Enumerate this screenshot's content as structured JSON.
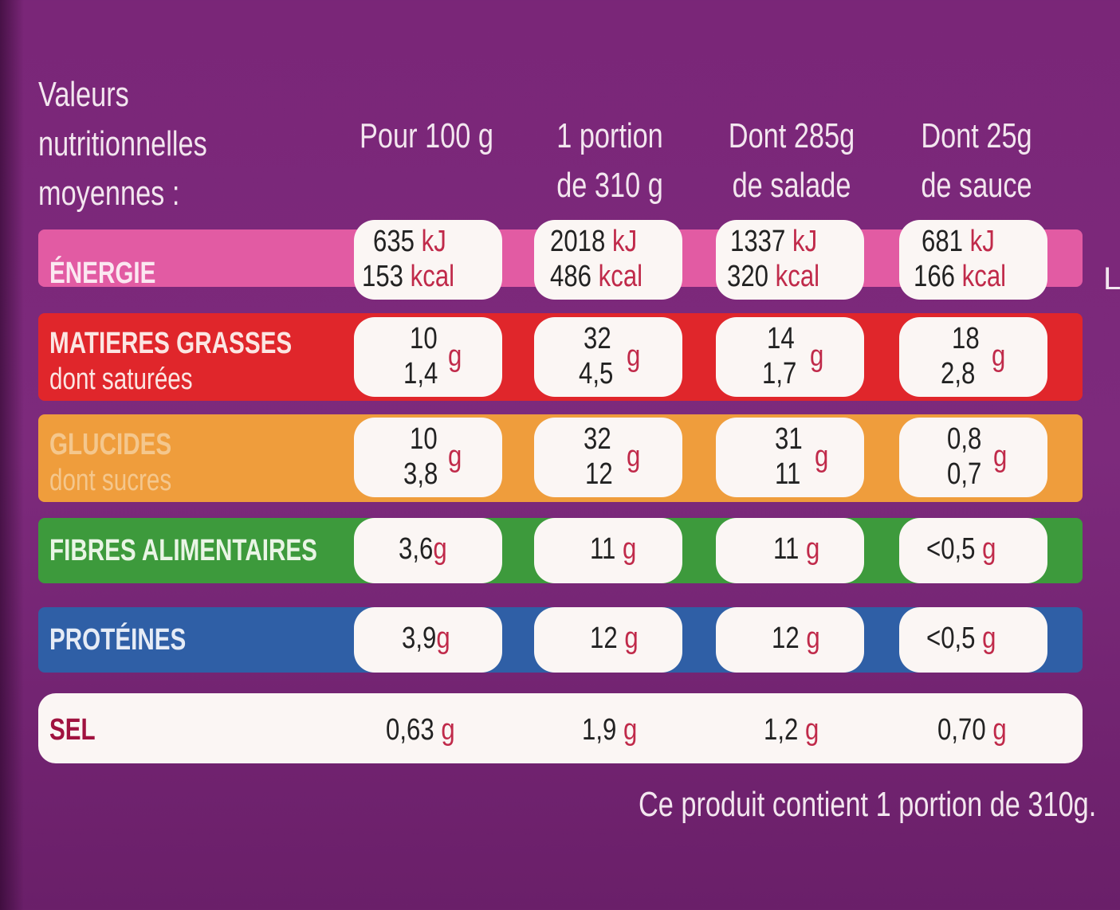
{
  "header": {
    "title_lines": [
      "Valeurs",
      "nutritionnelles",
      "moyennes :"
    ],
    "columns": [
      {
        "lines": [
          "Pour 100 g"
        ]
      },
      {
        "lines": [
          "1 portion",
          "de 310 g"
        ]
      },
      {
        "lines": [
          "Dont 285g",
          "de salade"
        ]
      },
      {
        "lines": [
          "Dont 25g",
          "de sauce"
        ]
      }
    ]
  },
  "colors": {
    "background": "#7a2678",
    "energie": "#e25ba3",
    "matieres": "#e0262b",
    "glucides": "#ef9d3c",
    "fibres": "#3d9a3c",
    "proteines": "#2f5fa6",
    "sel": "#fbf6f4",
    "unit": "#c02a4a"
  },
  "rows": {
    "energie": {
      "label": "ÉNERGIE",
      "cells": [
        {
          "kj": "635",
          "kcal": "153"
        },
        {
          "kj": "2018",
          "kcal": "486"
        },
        {
          "kj": "1337",
          "kcal": "320"
        },
        {
          "kj": "681",
          "kcal": "166"
        }
      ],
      "unit_kj": "kJ",
      "unit_kcal": "kcal"
    },
    "matieres": {
      "label": "MATIERES GRASSES",
      "sublabel": "dont saturées",
      "cells": [
        {
          "a": "10",
          "b": "1,4"
        },
        {
          "a": "32",
          "b": "4,5"
        },
        {
          "a": "14",
          "b": "1,7"
        },
        {
          "a": "18",
          "b": "2,8"
        }
      ]
    },
    "glucides": {
      "label": "GLUCIDES",
      "sublabel": "dont sucres",
      "cells": [
        {
          "a": "10",
          "b": "3,8"
        },
        {
          "a": "32",
          "b": "12"
        },
        {
          "a": "31",
          "b": "11"
        },
        {
          "a": "0,8",
          "b": "0,7"
        }
      ]
    },
    "fibres": {
      "label": "FIBRES ALIMENTAIRES",
      "cells": [
        "3,6",
        "11",
        "11",
        "<0,5"
      ]
    },
    "proteines": {
      "label": "PROTÉINES",
      "cells": [
        "3,9",
        "12",
        "12",
        "<0,5"
      ]
    },
    "sel": {
      "label": "SEL",
      "cells": [
        "0,63",
        "1,9",
        "1,2",
        "0,70"
      ]
    },
    "unit_g": "g"
  },
  "footnote": "Ce produit contient 1 portion de 310g.",
  "cutoff_letter": "L"
}
